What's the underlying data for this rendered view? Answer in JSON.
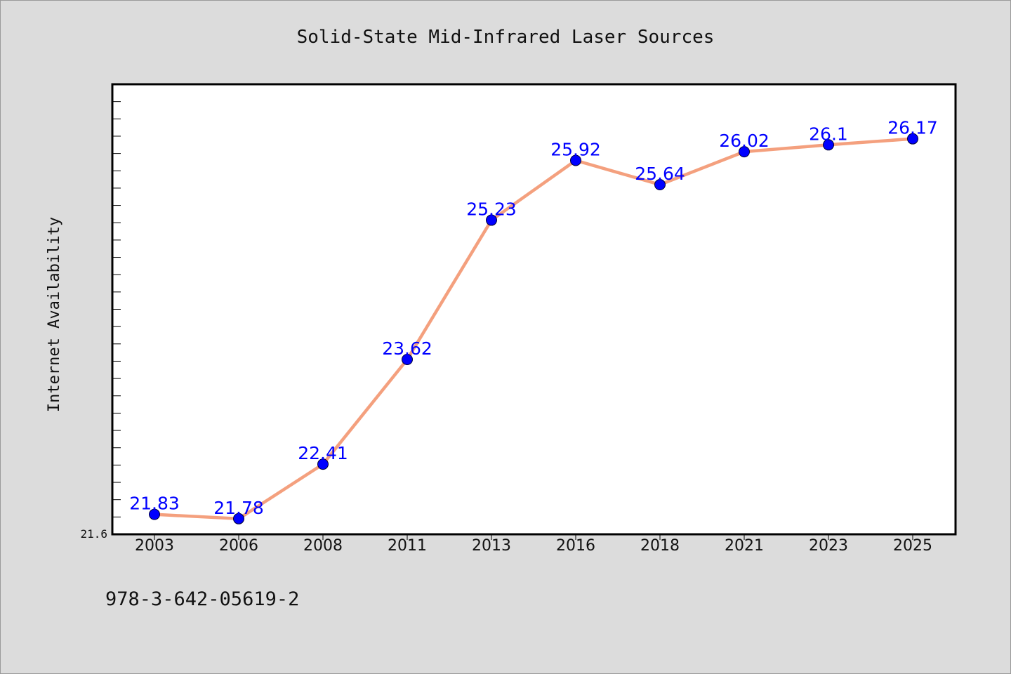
{
  "chart_data": {
    "type": "line",
    "title": "Solid-State Mid-Infrared Laser Sources",
    "xlabel": "",
    "ylabel": "Internet Availability",
    "categories": [
      "2003",
      "2006",
      "2008",
      "2011",
      "2013",
      "2016",
      "2018",
      "2021",
      "2023",
      "2025"
    ],
    "series": [
      {
        "values": [
          21.83,
          21.78,
          22.41,
          23.62,
          25.23,
          25.92,
          25.64,
          26.02,
          26.1,
          26.17
        ]
      }
    ],
    "data_labels": [
      "21.83",
      "21.78",
      "22.41",
      "23.62",
      "25.23",
      "25.92",
      "25.64",
      "26.02",
      "26.1",
      "26.17"
    ],
    "y_tick_labels": [
      "21.6"
    ],
    "ylim": [
      21.6,
      26.8
    ],
    "grid": false,
    "legend": "none",
    "colors": {
      "line": "#f4a07e",
      "marker": "#0000ff",
      "marker_edge": "#000033",
      "data_label": "#0000ff",
      "plot_background": "#ffffff",
      "page_background": "#dcdcdc"
    }
  },
  "footer": {
    "isbn": "978-3-642-05619-2"
  }
}
